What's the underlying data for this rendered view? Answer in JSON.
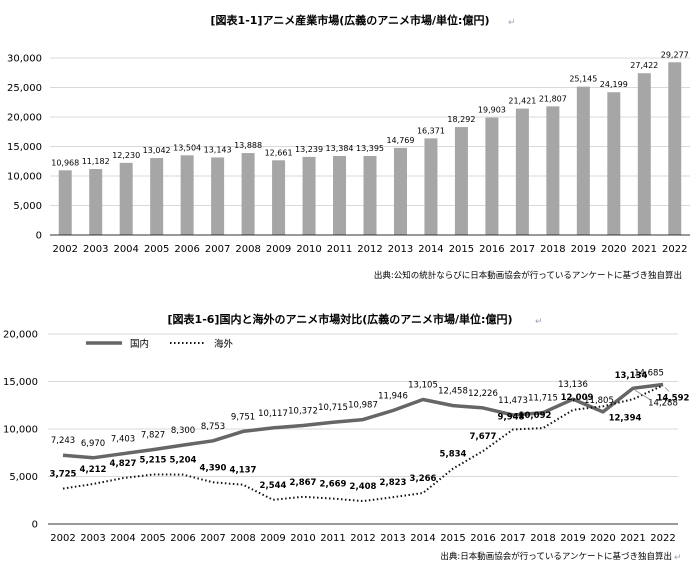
{
  "chart_data": [
    {
      "type": "bar",
      "title": "[図表1-1]アニメ産業市場(広義のアニメ市場/単位:億円)",
      "title_mark": "↵",
      "source": "出典:公知の統計ならびに日本動画協会が行っているアンケートに基づき独自算出",
      "categories": [
        "2002",
        "2003",
        "2004",
        "2005",
        "2006",
        "2007",
        "2008",
        "2009",
        "2010",
        "2011",
        "2012",
        "2013",
        "2014",
        "2015",
        "2016",
        "2017",
        "2018",
        "2019",
        "2020",
        "2021",
        "2022"
      ],
      "values": [
        10968,
        11182,
        12230,
        13042,
        13504,
        13143,
        13888,
        12661,
        13239,
        13384,
        13395,
        14769,
        16371,
        18292,
        19903,
        21421,
        21807,
        25145,
        24199,
        27422,
        29277
      ],
      "value_labels": [
        "10,968",
        "11,182",
        "12,230",
        "13,042",
        "13,504",
        "13,143",
        "13,888",
        "12,661",
        "13,239",
        "13,384",
        "13,395",
        "14,769",
        "16,371",
        "18,292",
        "19,903",
        "21,421",
        "21,807",
        "25,145",
        "24,199",
        "27,422",
        "29,277"
      ],
      "ylim": [
        0,
        30000
      ],
      "yticks": [
        0,
        5000,
        10000,
        15000,
        20000,
        25000,
        30000
      ],
      "ytick_labels": [
        "0",
        "5,000",
        "10,000",
        "15,000",
        "20,000",
        "25,000",
        "30,000"
      ],
      "bar_color": "#a6a6a6",
      "grid": true
    },
    {
      "type": "line",
      "title": "[図表1-6]国内と海外のアニメ市場対比(広義のアニメ市場/単位:億円)",
      "title_mark": "↵",
      "source": "出典:日本動画協会が行っているアンケートに基づき独自算出",
      "source_mark": "↵",
      "categories": [
        "2002",
        "2003",
        "2004",
        "2005",
        "2006",
        "2007",
        "2008",
        "2009",
        "2010",
        "2011",
        "2012",
        "2013",
        "2014",
        "2015",
        "2016",
        "2017",
        "2018",
        "2019",
        "2020",
        "2021",
        "2022"
      ],
      "series": [
        {
          "name": "国内",
          "style": "solid",
          "color": "#666666",
          "values": [
            7243,
            6970,
            7403,
            7827,
            8300,
            8753,
            9751,
            10117,
            10372,
            10715,
            10987,
            11946,
            13105,
            12458,
            12226,
            11473,
            11715,
            13136,
            11805,
            14288,
            14685
          ],
          "labels": [
            "7,243",
            "6,970",
            "7,403",
            "7,827",
            "8,300",
            "8,753",
            "9,751",
            "10,117",
            "10,372",
            "10,715",
            "10,987",
            "11,946",
            "13,105",
            "12,458",
            "12,226",
            "11,473",
            "11,715",
            "13,136",
            "11,805",
            "14,288",
            "14,685"
          ]
        },
        {
          "name": "海外",
          "style": "dotted",
          "color": "#111111",
          "values": [
            3725,
            4212,
            4827,
            5215,
            5204,
            4390,
            4137,
            2544,
            2867,
            2669,
            2408,
            2823,
            3266,
            5834,
            7677,
            9948,
            10092,
            12009,
            12394,
            13134,
            14592
          ],
          "labels": [
            "3,725",
            "4,212",
            "4,827",
            "5,215",
            "5,204",
            "4,390",
            "4,137",
            "2,544",
            "2,867",
            "2,669",
            "2,408",
            "2,823",
            "3,266",
            "5,834",
            "7,677",
            "9,948",
            "10,092",
            "12,009",
            "12,394",
            "13,134",
            "14,592"
          ]
        }
      ],
      "ylim": [
        0,
        20000
      ],
      "yticks": [
        0,
        5000,
        10000,
        15000,
        20000
      ],
      "ytick_labels": [
        "0",
        "5,000",
        "10,000",
        "15,000",
        "20,000"
      ],
      "grid": true,
      "legend": "top-left"
    }
  ]
}
